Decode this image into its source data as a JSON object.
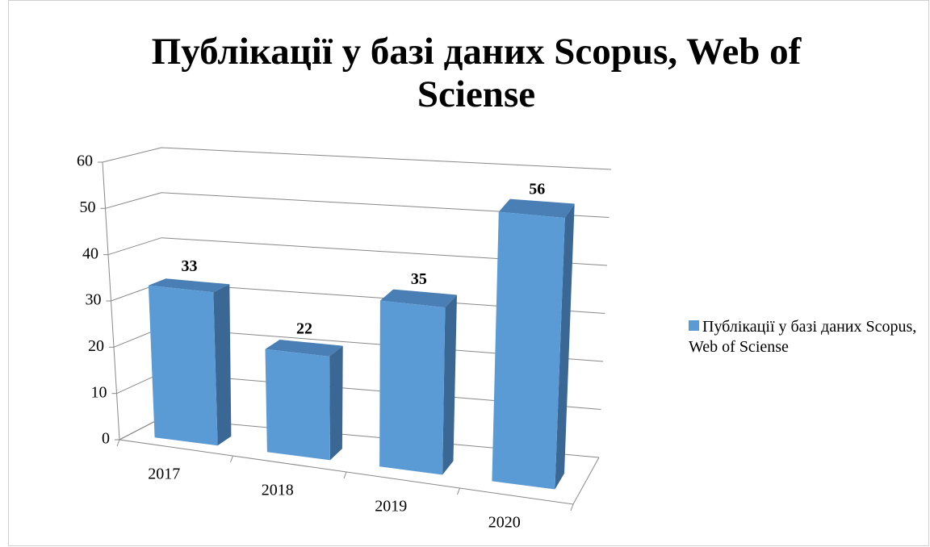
{
  "chart_data": {
    "type": "bar3d",
    "title": "Публікації у базі даних Scopus, Web of Sciense",
    "categories": [
      "2017",
      "2018",
      "2019",
      "2020"
    ],
    "series": [
      {
        "name": "Публікації у базі даних Scopus, Web of Sciense",
        "color": "#5b9bd5",
        "values": [
          33,
          22,
          35,
          56
        ]
      }
    ],
    "ylim": [
      0,
      60
    ],
    "yticks": [
      0,
      10,
      20,
      30,
      40,
      50,
      60
    ],
    "grid": true,
    "legend": "right"
  }
}
